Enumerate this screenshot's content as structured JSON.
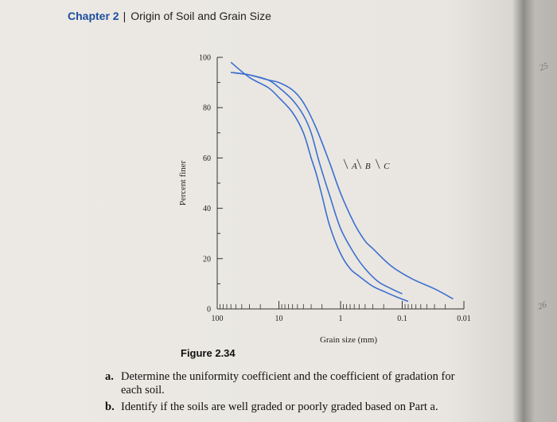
{
  "header": {
    "chapter": "Chapter 2",
    "title": "Origin of Soil and Grain Size"
  },
  "figure_caption": "Figure 2.34",
  "questions": [
    {
      "label": "a.",
      "line1": "Determine the uniformity coefficient and the coefficient of gradation for",
      "line2": "each soil."
    },
    {
      "label": "b.",
      "line1": "Identify if the soils are well graded or poorly graded based on Part a.",
      "line2": ""
    }
  ],
  "side_numbers": {
    "top": "25",
    "bottom": "26"
  },
  "chart_data": {
    "type": "line",
    "xlabel": "Grain size (mm)",
    "ylabel": "Percent finer",
    "xscale": "log",
    "xlim": [
      100,
      0.01
    ],
    "ylim": [
      0,
      100
    ],
    "x_ticks": [
      100,
      10,
      1,
      0.1,
      0.01
    ],
    "x_tick_labels": [
      "100",
      "10",
      "1",
      "0.1",
      "0.01"
    ],
    "y_ticks": [
      0,
      20,
      40,
      60,
      80,
      100
    ],
    "y_tick_labels": [
      "0",
      "20",
      "40",
      "60",
      "80",
      "100"
    ],
    "curve_color": "#3b6fd0",
    "series": [
      {
        "name": "A",
        "x": [
          60,
          30,
          15,
          10,
          6,
          4,
          3,
          2.5,
          2,
          1.5,
          1,
          0.7,
          0.5,
          0.3,
          0.2,
          0.13,
          0.08
        ],
        "y": [
          98,
          92,
          88,
          84,
          78,
          70,
          60,
          54,
          45,
          33,
          22,
          16,
          13,
          9,
          7,
          5,
          3
        ]
      },
      {
        "name": "B",
        "x": [
          60,
          30,
          15,
          10,
          6,
          4,
          3,
          2.2,
          1.5,
          1,
          0.6,
          0.4,
          0.25,
          0.15,
          0.1
        ],
        "y": [
          94,
          93,
          91,
          88,
          83,
          77,
          70,
          58,
          45,
          32,
          22,
          16,
          11,
          8,
          6
        ]
      },
      {
        "name": "C",
        "x": [
          60,
          30,
          15,
          10,
          6,
          4,
          2.5,
          1.5,
          1,
          0.6,
          0.4,
          0.3,
          0.15,
          0.07,
          0.03,
          0.015
        ],
        "y": [
          94,
          93,
          91,
          90,
          87,
          82,
          72,
          58,
          46,
          34,
          27,
          24,
          17,
          12,
          8,
          4
        ]
      }
    ]
  }
}
